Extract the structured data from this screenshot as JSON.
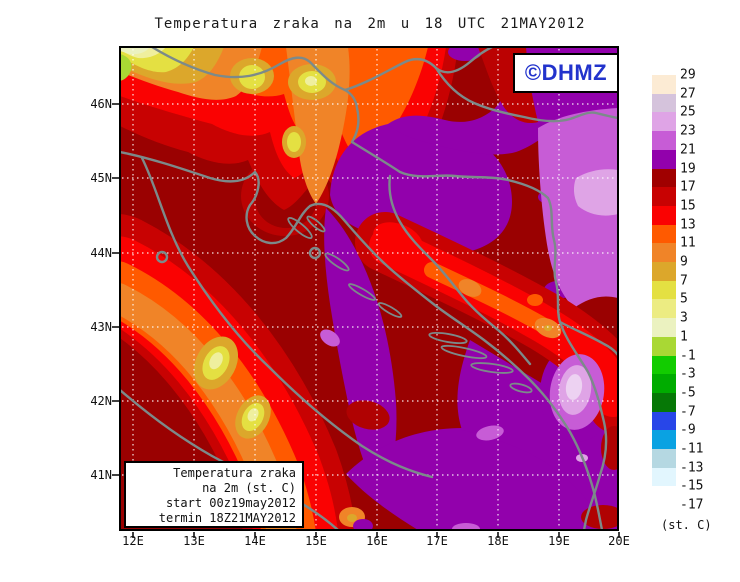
{
  "title": "Temperatura zraka na 2m u 18 UTC 21MAY2012",
  "logo": {
    "text": "©DHMZ"
  },
  "axes": {
    "lat": [
      "46N",
      "45N",
      "44N",
      "43N",
      "42N",
      "41N"
    ],
    "lon": [
      "12E",
      "13E",
      "14E",
      "15E",
      "16E",
      "17E",
      "18E",
      "19E",
      "20E"
    ]
  },
  "info_box": {
    "lines": [
      "Temperatura zraka",
      "na 2m (st. C)",
      "start 00z19may2012",
      "termin 18Z21MAY2012"
    ]
  },
  "legend": {
    "labels": [
      "29",
      "27",
      "25",
      "23",
      "21",
      "19",
      "17",
      "15",
      "13",
      "11",
      "9",
      "7",
      "5",
      "3",
      "1",
      "-1",
      "-3",
      "-5",
      "-7",
      "-9",
      "-11",
      "-13",
      "-15",
      "-17"
    ],
    "colors": [
      "#FCEBD4",
      "#D5C3DC",
      "#DFA4E6",
      "#C75CD6",
      "#9201AC",
      "#A00000",
      "#C80202",
      "#FA0202",
      "#FF5A00",
      "#F08428",
      "#DCA72B",
      "#E4E042",
      "#ECEC82",
      "#EBF2C0",
      "#A9D834",
      "#12CC00",
      "#00AC00",
      "#067806",
      "#2846E8",
      "#0AA2E2",
      "#B5D8E2",
      "#E2F6FE",
      "#FFFFFF"
    ],
    "unit": "(st. C)"
  },
  "map_colors": {
    "base": "#9A0101",
    "grid": "#FFFFFF",
    "coast": "#7C8A8A",
    "frame": "#000000"
  }
}
